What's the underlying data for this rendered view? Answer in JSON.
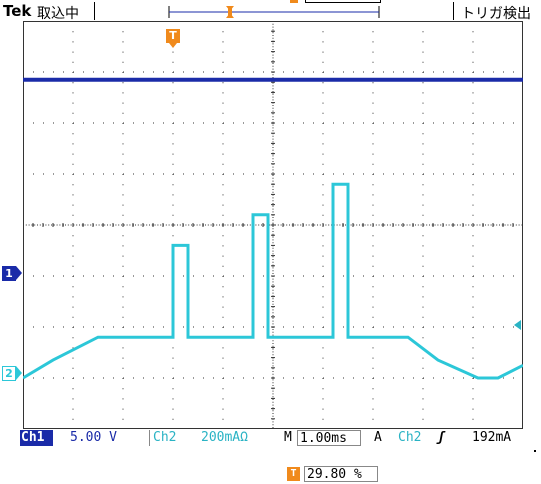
{
  "topbar": {
    "brand": "Tek",
    "acquisition_status": "取込中",
    "trigger_status": "トリガ検出"
  },
  "graticule": {
    "divisions_x": 10,
    "divisions_y": 8
  },
  "markers": {
    "trigger_position_label": "T",
    "ch1_label": "1",
    "ch2_label": "2"
  },
  "colors": {
    "ch1": "#1a2ba8",
    "ch2": "#2cc7d8",
    "trigger": "#f08a1c",
    "grid": "#333333"
  },
  "status_bar": {
    "ch1_tag": "Ch1",
    "ch1_scale": "5.00 V",
    "ch2_tag": "Ch2",
    "ch2_scale": "200mAΩ",
    "timebase_tag": "M",
    "timebase_value": "1.00ms",
    "trigger_mode": "A",
    "trigger_source": "Ch2",
    "trigger_edge": "ʃ",
    "trigger_level": "192mA"
  },
  "horizontal_position": {
    "icon": "T",
    "value": "29.80 %"
  },
  "chart_data": {
    "type": "line",
    "series": [
      {
        "x": [
          0,
          10
        ],
        "values": [
          6.85,
          6.85
        ]
      },
      {
        "x": [
          0,
          0.6,
          1.5,
          3.0,
          3.0,
          3.3,
          3.3,
          4.6,
          4.6,
          4.9,
          4.9,
          6.2,
          6.2,
          6.5,
          6.5,
          7.7,
          8.3,
          9.1,
          9.5,
          10
        ],
        "values": [
          1.0,
          1.35,
          1.8,
          1.8,
          3.6,
          3.6,
          1.8,
          1.8,
          4.2,
          4.2,
          1.8,
          1.8,
          4.8,
          4.8,
          1.8,
          1.8,
          1.35,
          1.0,
          1.0,
          1.25
        ]
      }
    ],
    "xlim": [
      0,
      10
    ],
    "ylim": [
      0,
      8
    ],
    "grid": true
  }
}
